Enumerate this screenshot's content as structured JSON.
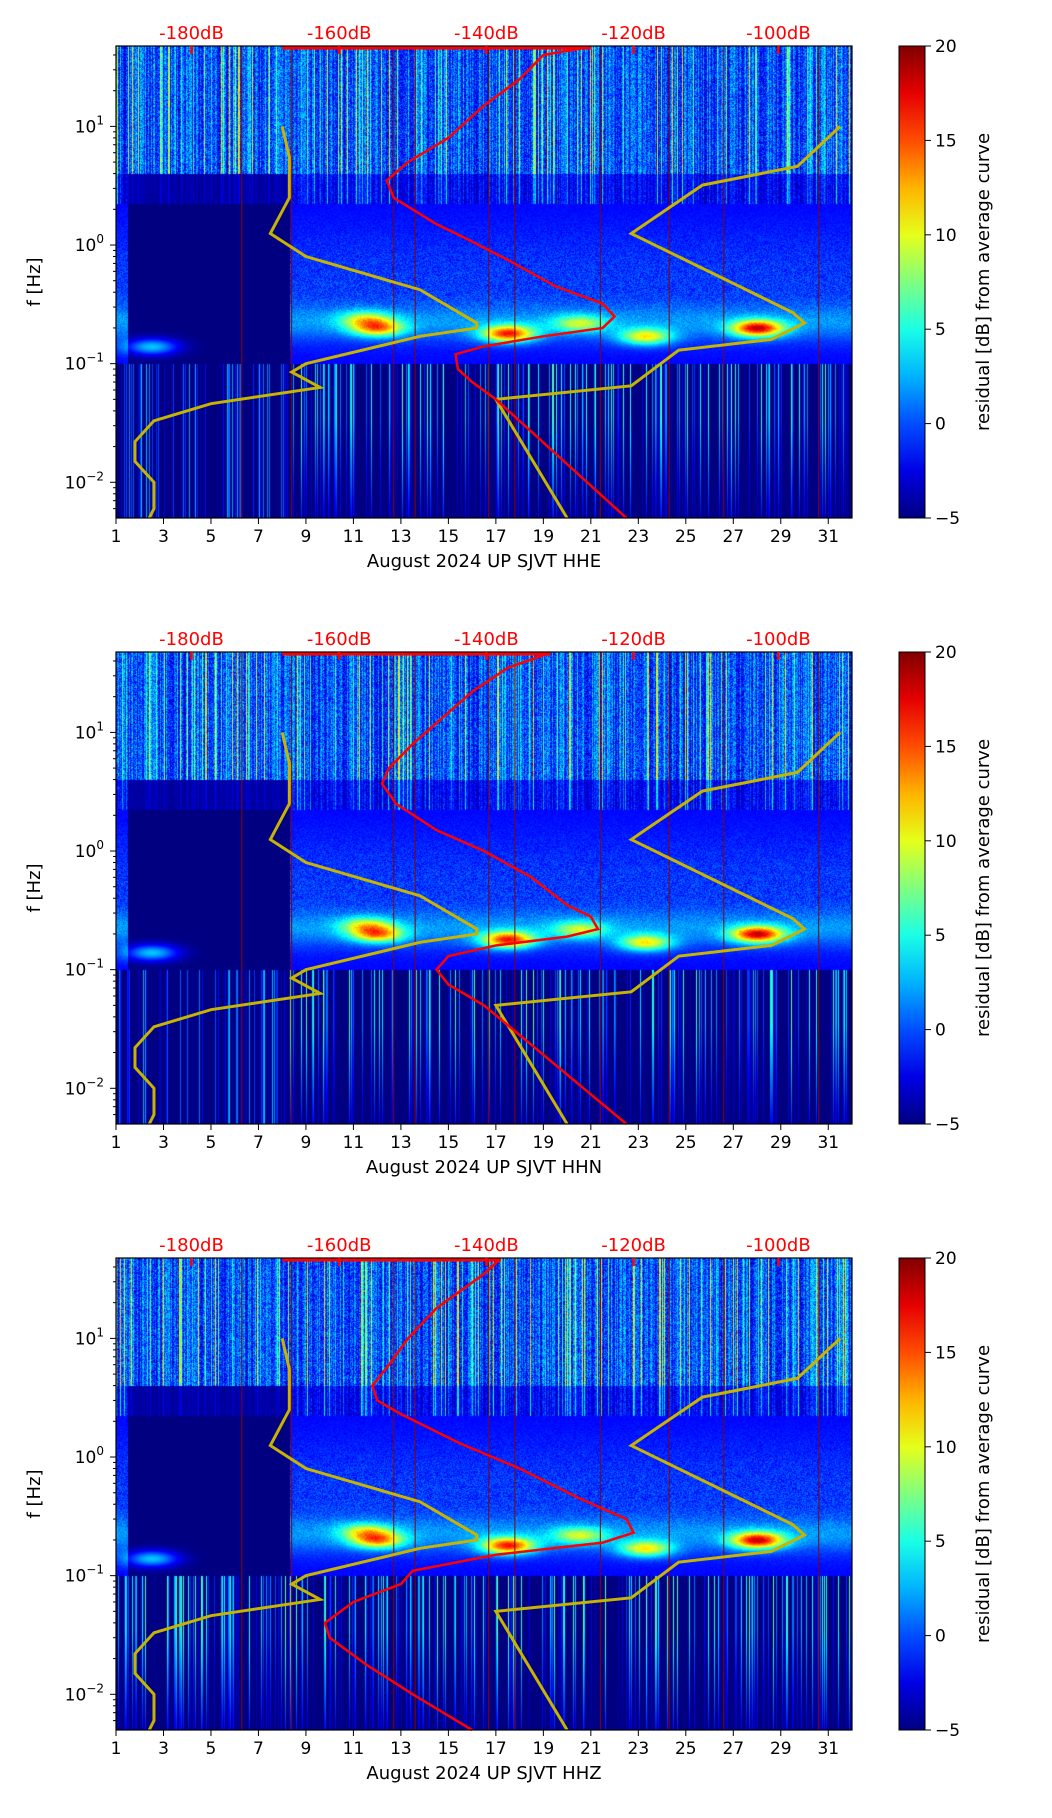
{
  "chart_data": [
    {
      "type": "heatmap",
      "xlabel": "August 2024 UP SJVT  HHE",
      "ylabel": "f [Hz]",
      "xlim": [
        1,
        32
      ],
      "ylim": [
        0.005,
        47.6
      ],
      "yscale": "log",
      "xticks": [
        "1",
        "3",
        "5",
        "7",
        "9",
        "11",
        "13",
        "15",
        "17",
        "19",
        "21",
        "23",
        "25",
        "27",
        "29",
        "31"
      ],
      "yticks": [
        {
          "exp": "1",
          "v": 10
        },
        {
          "exp": "0",
          "v": 1
        },
        {
          "exp": "−1",
          "v": 0.1
        },
        {
          "exp": "−2",
          "v": 0.01
        }
      ],
      "top_axis": {
        "ticks": [
          {
            "label": "-180dB",
            "day": 4.18
          },
          {
            "label": "-160dB",
            "day": 10.4
          },
          {
            "label": "-140dB",
            "day": 16.6
          },
          {
            "label": "-120dB",
            "day": 22.8
          },
          {
            "label": "-100dB",
            "day": 28.9
          }
        ],
        "color": "#ff0000"
      },
      "colorbar": {
        "label": "residual [dB] from average curve",
        "range": [
          -5,
          20
        ],
        "ticks": [
          "−5",
          "0",
          "5",
          "10",
          "15",
          "20"
        ]
      },
      "red_curve": [
        [
          21,
          47
        ],
        [
          19,
          40
        ],
        [
          18,
          25
        ],
        [
          16.5,
          15
        ],
        [
          15,
          8
        ],
        [
          13.3,
          5
        ],
        [
          12.4,
          3.5
        ],
        [
          12.7,
          2.5
        ],
        [
          14.5,
          1.5
        ],
        [
          15.5,
          1.2
        ],
        [
          17.5,
          0.75
        ],
        [
          19.5,
          0.45
        ],
        [
          21.5,
          0.32
        ],
        [
          22,
          0.25
        ],
        [
          21.5,
          0.2
        ],
        [
          19,
          0.17
        ],
        [
          16.5,
          0.14
        ],
        [
          15.3,
          0.12
        ],
        [
          15.4,
          0.09
        ],
        [
          16,
          0.07
        ],
        [
          17,
          0.05
        ],
        [
          22.5,
          0.005
        ]
      ]
    },
    {
      "type": "heatmap",
      "xlabel": "August 2024 UP SJVT  HHN",
      "ylabel": "f [Hz]",
      "xlim": [
        1,
        32
      ],
      "ylim": [
        0.005,
        47.6
      ],
      "yscale": "log",
      "xticks": [
        "1",
        "3",
        "5",
        "7",
        "9",
        "11",
        "13",
        "15",
        "17",
        "19",
        "21",
        "23",
        "25",
        "27",
        "29",
        "31"
      ],
      "yticks": [
        {
          "exp": "1",
          "v": 10
        },
        {
          "exp": "0",
          "v": 1
        },
        {
          "exp": "−1",
          "v": 0.1
        },
        {
          "exp": "−2",
          "v": 0.01
        }
      ],
      "top_axis": {
        "ticks": [
          {
            "label": "-180dB",
            "day": 4.18
          },
          {
            "label": "-160dB",
            "day": 10.4
          },
          {
            "label": "-140dB",
            "day": 16.6
          },
          {
            "label": "-120dB",
            "day": 22.8
          },
          {
            "label": "-100dB",
            "day": 28.9
          }
        ],
        "color": "#ff0000"
      },
      "colorbar": {
        "label": "residual [dB] from average curve",
        "range": [
          -5,
          20
        ],
        "ticks": [
          "−5",
          "0",
          "5",
          "10",
          "15",
          "20"
        ]
      },
      "red_curve": [
        [
          19.3,
          47
        ],
        [
          17.5,
          35
        ],
        [
          16,
          22
        ],
        [
          14.5,
          12
        ],
        [
          13.5,
          8
        ],
        [
          12.5,
          5
        ],
        [
          12.2,
          3.7
        ],
        [
          12.8,
          2.5
        ],
        [
          14.5,
          1.5
        ],
        [
          16.5,
          1
        ],
        [
          18.5,
          0.6
        ],
        [
          20,
          0.35
        ],
        [
          21,
          0.28
        ],
        [
          21.3,
          0.22
        ],
        [
          20,
          0.19
        ],
        [
          17,
          0.16
        ],
        [
          15,
          0.13
        ],
        [
          14.5,
          0.1
        ],
        [
          15,
          0.075
        ],
        [
          16.5,
          0.05
        ],
        [
          22.5,
          0.005
        ]
      ]
    },
    {
      "type": "heatmap",
      "xlabel": "August 2024 UP SJVT  HHZ",
      "ylabel": "f [Hz]",
      "xlim": [
        1,
        32
      ],
      "ylim": [
        0.005,
        47.6
      ],
      "yscale": "log",
      "xticks": [
        "1",
        "3",
        "5",
        "7",
        "9",
        "11",
        "13",
        "15",
        "17",
        "19",
        "21",
        "23",
        "25",
        "27",
        "29",
        "31"
      ],
      "yticks": [
        {
          "exp": "1",
          "v": 10
        },
        {
          "exp": "0",
          "v": 1
        },
        {
          "exp": "−1",
          "v": 0.1
        },
        {
          "exp": "−2",
          "v": 0.01
        }
      ],
      "top_axis": {
        "ticks": [
          {
            "label": "-180dB",
            "day": 4.18
          },
          {
            "label": "-160dB",
            "day": 10.4
          },
          {
            "label": "-140dB",
            "day": 16.6
          },
          {
            "label": "-120dB",
            "day": 22.8
          },
          {
            "label": "-100dB",
            "day": 28.9
          }
        ],
        "color": "#ff0000"
      },
      "colorbar": {
        "label": "residual [dB] from average curve",
        "range": [
          -5,
          20
        ],
        "ticks": [
          "−5",
          "0",
          "5",
          "10",
          "15",
          "20"
        ]
      },
      "red_curve": [
        [
          17.2,
          47
        ],
        [
          16.5,
          35
        ],
        [
          14.5,
          18
        ],
        [
          13.3,
          10
        ],
        [
          12.5,
          6
        ],
        [
          11.8,
          4
        ],
        [
          12,
          3
        ],
        [
          13,
          2.3
        ],
        [
          15.5,
          1.3
        ],
        [
          18,
          0.8
        ],
        [
          20.5,
          0.45
        ],
        [
          22.5,
          0.3
        ],
        [
          22.8,
          0.23
        ],
        [
          21.5,
          0.19
        ],
        [
          17,
          0.15
        ],
        [
          13.5,
          0.11
        ],
        [
          13,
          0.085
        ],
        [
          11,
          0.06
        ],
        [
          9.8,
          0.04
        ],
        [
          10,
          0.03
        ],
        [
          11.5,
          0.018
        ],
        [
          13.5,
          0.01
        ],
        [
          16,
          0.005
        ]
      ]
    }
  ],
  "yellow_curves": [
    [
      [
        8,
        10
      ],
      [
        8.3,
        5.5
      ],
      [
        8.3,
        2.5
      ],
      [
        7.5,
        1.25
      ],
      [
        9,
        0.8
      ],
      [
        13.8,
        0.42
      ],
      [
        16.2,
        0.22
      ],
      [
        16.2,
        0.2
      ],
      [
        13.8,
        0.17
      ],
      [
        9,
        0.1
      ],
      [
        8.4,
        0.085
      ],
      [
        9.6,
        0.063
      ],
      [
        5,
        0.046
      ],
      [
        2.6,
        0.033
      ],
      [
        1.8,
        0.022
      ],
      [
        1.8,
        0.015
      ],
      [
        2.6,
        0.01
      ],
      [
        2.6,
        0.006
      ],
      [
        2.4,
        0.005
      ]
    ],
    [
      [
        20,
        0.005
      ],
      [
        17,
        0.05
      ],
      [
        22.7,
        0.065
      ],
      [
        24.7,
        0.13
      ],
      [
        28.6,
        0.16
      ],
      [
        30,
        0.22
      ],
      [
        29.5,
        0.27
      ],
      [
        22.7,
        1.25
      ],
      [
        25.7,
        3.2
      ],
      [
        29.7,
        4.6
      ],
      [
        31.5,
        10
      ]
    ]
  ],
  "marker_days": [
    6.3,
    8.4,
    12.7,
    13.6,
    16.7,
    17.8,
    21.4,
    24.3,
    26.6,
    30.6
  ],
  "colors": {
    "red": "#ff0000",
    "yellow": "#c8b400",
    "marker": "#8b0000"
  }
}
